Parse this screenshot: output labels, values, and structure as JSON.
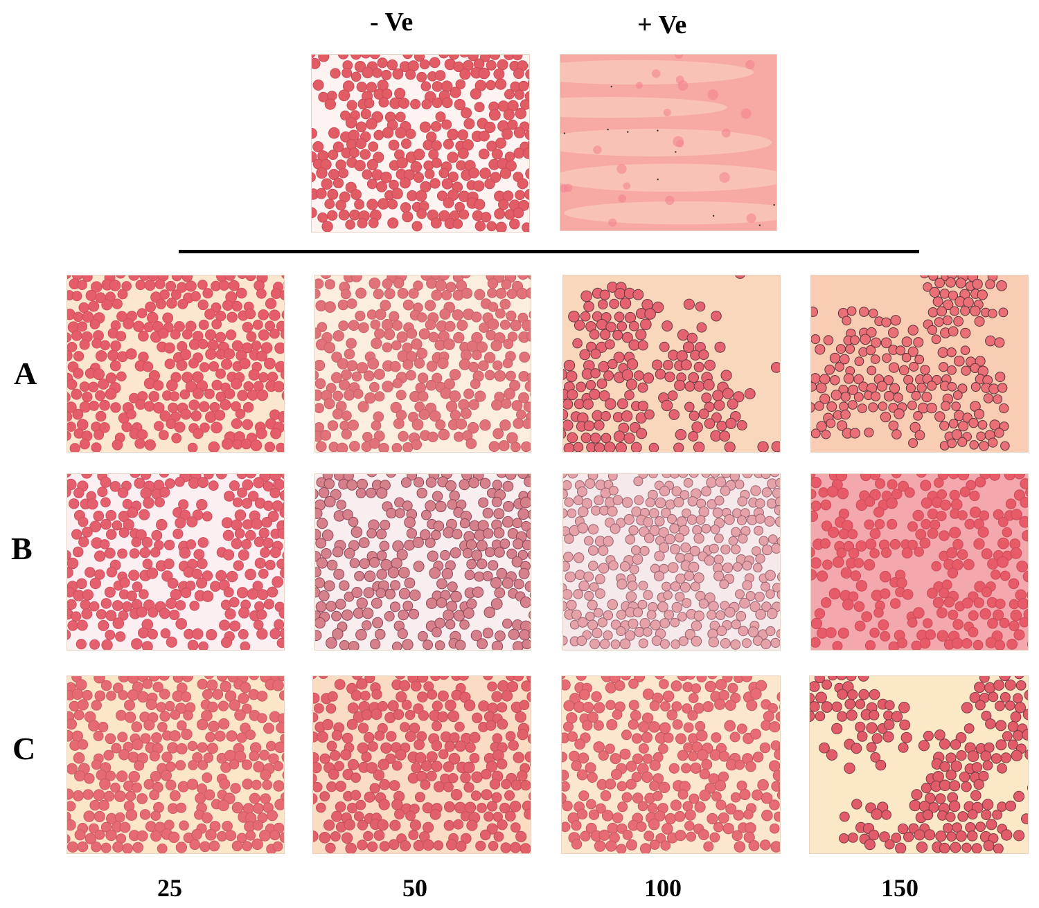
{
  "controls": {
    "negative_label": "- Ve",
    "positive_label": "+ Ve"
  },
  "rows": [
    {
      "label": "A"
    },
    {
      "label": "B"
    },
    {
      "label": "C"
    }
  ],
  "columns": [
    {
      "label": "25"
    },
    {
      "label": "50"
    },
    {
      "label": "100"
    },
    {
      "label": "150"
    }
  ],
  "colors": {
    "cell_red": "#e4606a",
    "cell_dark": "#9c5560",
    "background_pale": "#fbf0e6",
    "background_pink": "#f6a5a0",
    "background_cream": "#fbe9cb"
  }
}
